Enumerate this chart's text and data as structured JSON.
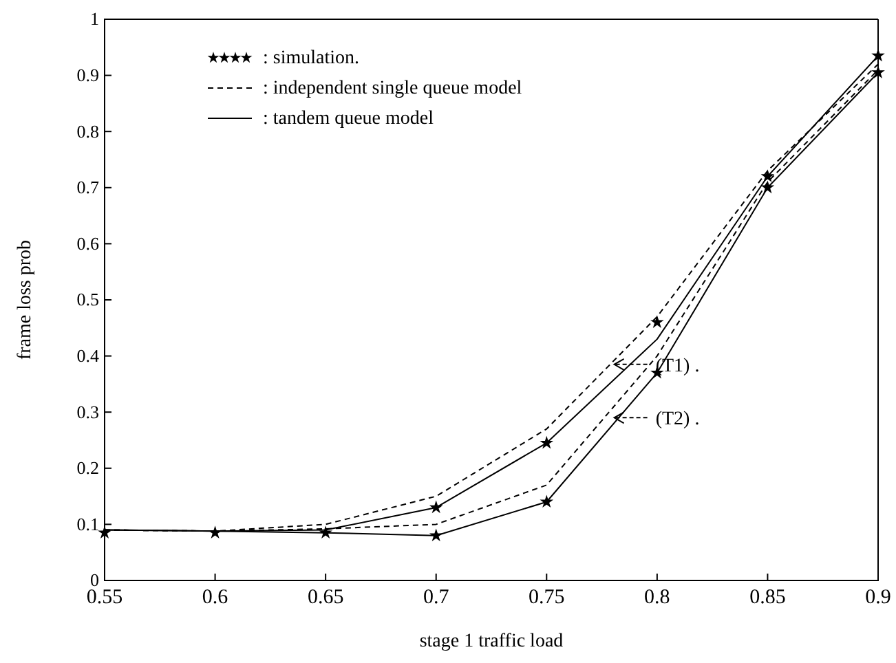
{
  "chart_data": {
    "type": "line",
    "xlabel": "stage 1 traffic load",
    "ylabel": "frame loss prob",
    "x": [
      0.55,
      0.6,
      0.65,
      0.7,
      0.75,
      0.8,
      0.85,
      0.9
    ],
    "xlim": [
      0.55,
      0.9
    ],
    "xticks": [
      0.55,
      0.6,
      0.65,
      0.7,
      0.75,
      0.8,
      0.85,
      0.9
    ],
    "ylim": [
      0,
      1
    ],
    "yticks": [
      0,
      0.1,
      0.2,
      0.3,
      0.4,
      0.5,
      0.6,
      0.7,
      0.8,
      0.9,
      1
    ],
    "grid": false,
    "legend": "top left",
    "series": [
      {
        "name": ": simulation.",
        "type": "scatter",
        "marker": "star",
        "color": "#000000",
        "values": [
          0.085,
          0.085,
          0.085,
          0.13,
          0.245,
          0.46,
          0.72,
          0.935
        ]
      },
      {
        "type": "scatter",
        "marker": "star",
        "color": "#000000",
        "values": [
          null,
          null,
          null,
          0.08,
          0.14,
          0.37,
          0.7,
          0.905
        ]
      },
      {
        "name": ": independent single queue model",
        "line_style": "dashed",
        "marker": "none",
        "color": "#000000",
        "values": [
          0.09,
          0.088,
          0.1,
          0.15,
          0.27,
          0.47,
          0.73,
          0.92
        ]
      },
      {
        "name": ": tandem queue model",
        "line_style": "solid",
        "marker": "none",
        "color": "#000000",
        "values": [
          0.09,
          0.088,
          0.09,
          0.13,
          0.245,
          0.43,
          0.72,
          0.935
        ]
      },
      {
        "line_style": "dashed",
        "marker": "none",
        "color": "#000000",
        "values": [
          0.09,
          0.088,
          0.092,
          0.1,
          0.17,
          0.4,
          0.71,
          0.91
        ]
      },
      {
        "line_style": "solid",
        "marker": "none",
        "color": "#000000",
        "values": [
          0.09,
          0.088,
          0.085,
          0.08,
          0.14,
          0.37,
          0.7,
          0.905
        ]
      }
    ],
    "annotations": [
      {
        "text": "(T1) .",
        "x": 0.78,
        "y": 0.385
      },
      {
        "text": "(T2) .",
        "x": 0.78,
        "y": 0.29
      }
    ]
  }
}
